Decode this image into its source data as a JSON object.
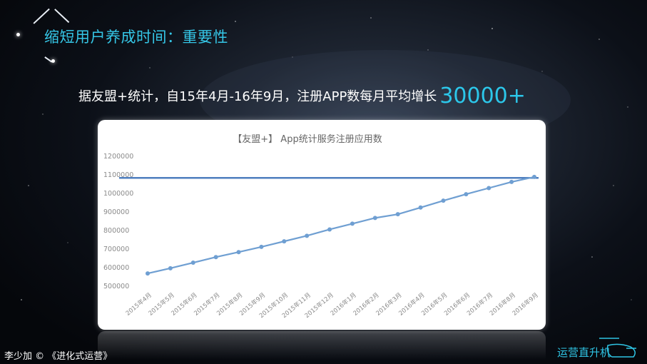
{
  "slide": {
    "title": "缩短用户养成时间：重要性",
    "subtitle_text": "据友盟+统计，自15年4月-16年9月，注册APP数每月平均增长",
    "subtitle_highlight": "30000+",
    "footer_left": "李少加 © 《进化式运营》",
    "footer_right": "运营直升机"
  },
  "colors": {
    "title": "#35c6e6",
    "highlight": "#2cc7ea",
    "line_series": "#6f9fd2",
    "reference_line": "#4f7fbf",
    "axis_text": "#8a8a8a"
  },
  "chart_data": {
    "type": "line",
    "title": "【友盟+】 App统计服务注册应用数",
    "categories": [
      "2015年4月",
      "2015年5月",
      "2015年6月",
      "2015年7月",
      "2015年8月",
      "2015年9月",
      "2015年10月",
      "2015年11月",
      "2015年12月",
      "2016年1月",
      "2016年2月",
      "2016年3月",
      "2016年4月",
      "2016年5月",
      "2016年6月",
      "2016年7月",
      "2016年8月",
      "2016年9月"
    ],
    "values": [
      565000,
      593000,
      623000,
      653000,
      680000,
      708000,
      738000,
      768000,
      802000,
      833000,
      864000,
      884000,
      920000,
      957000,
      992000,
      1025000,
      1058000,
      1085000
    ],
    "reference_value": 1080000,
    "yticks": [
      500000,
      600000,
      700000,
      800000,
      900000,
      1000000,
      1100000,
      1200000
    ],
    "ylim": [
      500000,
      1200000
    ],
    "grid": false
  }
}
